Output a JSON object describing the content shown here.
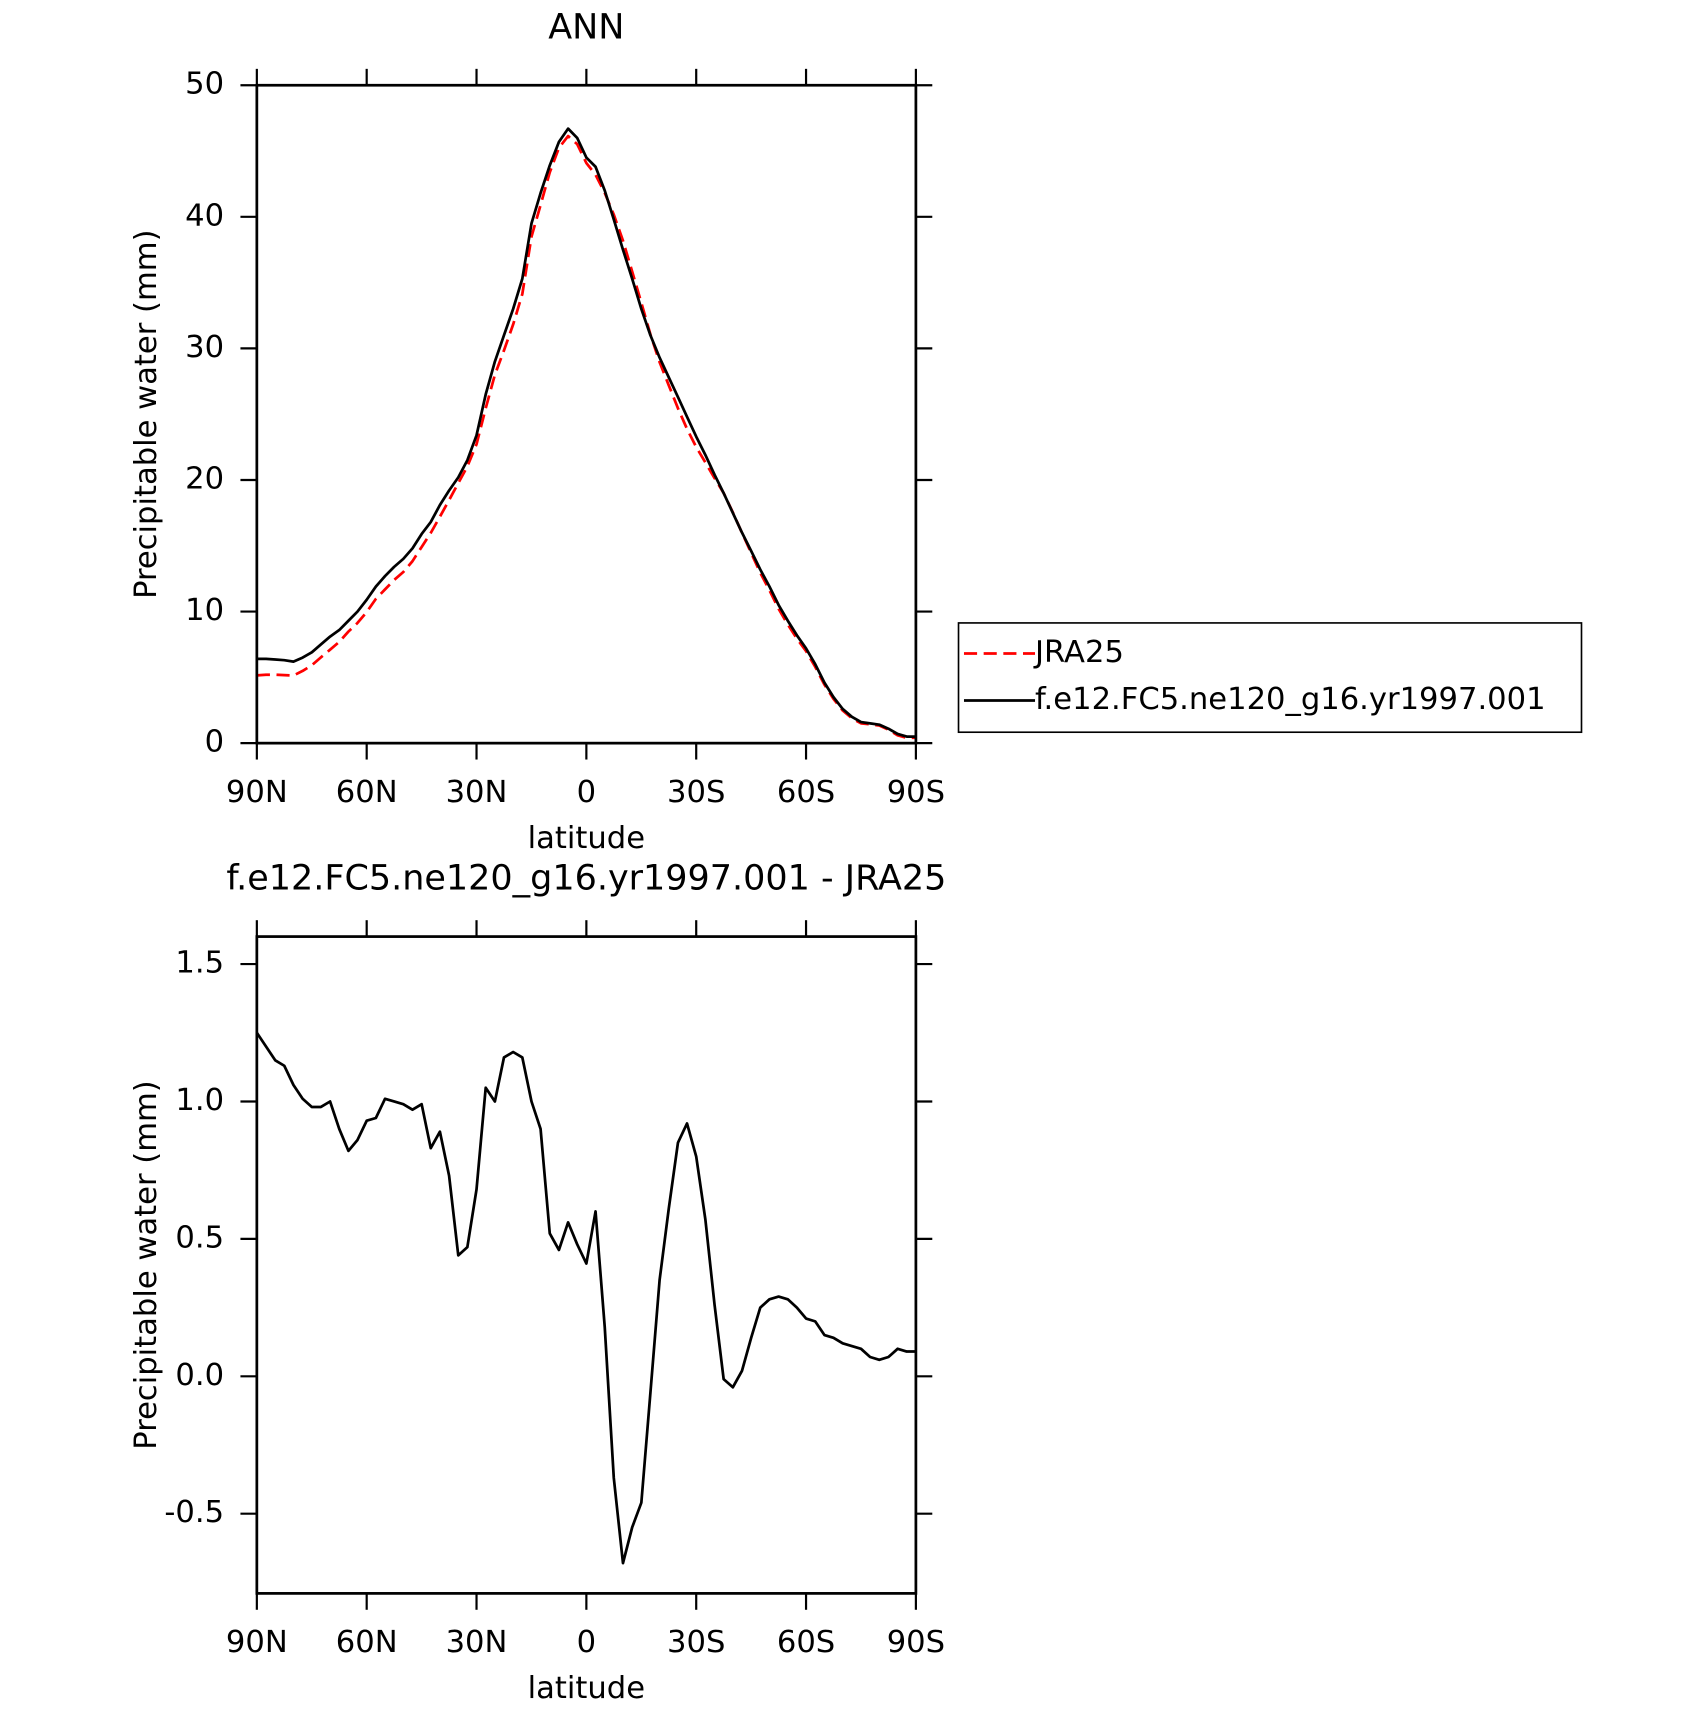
{
  "chart_data": [
    {
      "type": "line",
      "title": "ANN",
      "xlabel": "latitude",
      "ylabel": "Precipitable water (mm)",
      "x": [
        90,
        87.5,
        85,
        82.5,
        80,
        77.5,
        75,
        72.5,
        70,
        67.5,
        65,
        62.5,
        60,
        57.5,
        55,
        52.5,
        50,
        47.5,
        45,
        42.5,
        40,
        37.5,
        35,
        32.5,
        30,
        27.5,
        25,
        22.5,
        20,
        17.5,
        15,
        12.5,
        10,
        7.5,
        5,
        2.5,
        0,
        -2.5,
        -5,
        -7.5,
        -10,
        -12.5,
        -15,
        -17.5,
        -20,
        -22.5,
        -25,
        -27.5,
        -30,
        -32.5,
        -35,
        -37.5,
        -40,
        -42.5,
        -45,
        -47.5,
        -50,
        -52.5,
        -55,
        -57.5,
        -60,
        -62.5,
        -65,
        -67.5,
        -70,
        -72.5,
        -75,
        -77.5,
        -80,
        -82.5,
        -85,
        -87.5,
        -90
      ],
      "series": [
        {
          "name": "JRA25",
          "color": "#ff0000",
          "dash": true,
          "values": [
            5.15,
            5.2,
            5.2,
            5.17,
            5.14,
            5.49,
            5.92,
            6.52,
            7.1,
            7.7,
            8.48,
            9.14,
            9.97,
            10.96,
            11.69,
            12.4,
            13.01,
            13.83,
            14.91,
            15.97,
            17.21,
            18.47,
            19.76,
            21.03,
            22.72,
            25.45,
            28.0,
            29.84,
            31.82,
            34.14,
            38.5,
            40.9,
            43.38,
            45.24,
            46.14,
            45.52,
            44.09,
            43.2,
            41.82,
            40.17,
            38.18,
            35.85,
            33.46,
            31.06,
            28.95,
            27.19,
            25.45,
            23.88,
            22.5,
            21.33,
            20.14,
            19.01,
            17.54,
            15.98,
            14.46,
            12.95,
            11.62,
            10.21,
            9.02,
            7.95,
            6.99,
            5.8,
            4.45,
            3.36,
            2.48,
            1.89,
            1.5,
            1.43,
            1.34,
            1.03,
            0.6,
            0.41,
            0.41
          ]
        },
        {
          "name": "f.e12.FC5.ne120_g16.yr1997.001",
          "color": "#000000",
          "dash": false,
          "values": [
            6.4,
            6.4,
            6.35,
            6.3,
            6.2,
            6.5,
            6.9,
            7.5,
            8.1,
            8.6,
            9.3,
            10.0,
            10.9,
            11.9,
            12.7,
            13.4,
            14.0,
            14.8,
            15.9,
            16.8,
            18.1,
            19.2,
            20.2,
            21.5,
            23.4,
            26.5,
            29.0,
            31.0,
            33.0,
            35.3,
            39.5,
            41.8,
            43.9,
            45.7,
            46.7,
            46.0,
            44.5,
            43.8,
            42.0,
            39.8,
            37.5,
            35.3,
            33.0,
            31.0,
            29.3,
            27.8,
            26.3,
            24.8,
            23.3,
            21.9,
            20.4,
            19.0,
            17.5,
            16.0,
            14.6,
            13.2,
            11.9,
            10.5,
            9.3,
            8.2,
            7.2,
            6.0,
            4.6,
            3.5,
            2.6,
            2.0,
            1.6,
            1.5,
            1.4,
            1.1,
            0.7,
            0.5,
            0.5
          ]
        }
      ],
      "xlim": [
        90,
        -90
      ],
      "xticks": [
        {
          "value": 90,
          "label": "90N"
        },
        {
          "value": 60,
          "label": "60N"
        },
        {
          "value": 30,
          "label": "30N"
        },
        0,
        {
          "value": -30,
          "label": "30S"
        },
        {
          "value": -60,
          "label": "60S"
        },
        {
          "value": -90,
          "label": "90S"
        }
      ],
      "ylim": [
        0,
        50
      ],
      "yticks": [
        0,
        10,
        20,
        30,
        40,
        50
      ],
      "legend": "right"
    },
    {
      "type": "line",
      "title": "f.e12.FC5.ne120_g16.yr1997.001 - JRA25",
      "xlabel": "latitude",
      "ylabel": "Precipitable water (mm)",
      "x": [
        90,
        87.5,
        85,
        82.5,
        80,
        77.5,
        75,
        72.5,
        70,
        67.5,
        65,
        62.5,
        60,
        57.5,
        55,
        52.5,
        50,
        47.5,
        45,
        42.5,
        40,
        37.5,
        35,
        32.5,
        30,
        27.5,
        25,
        22.5,
        20,
        17.5,
        15,
        12.5,
        10,
        7.5,
        5,
        2.5,
        0,
        -2.5,
        -5,
        -7.5,
        -10,
        -12.5,
        -15,
        -17.5,
        -20,
        -22.5,
        -25,
        -27.5,
        -30,
        -32.5,
        -35,
        -37.5,
        -40,
        -42.5,
        -45,
        -47.5,
        -50,
        -52.5,
        -55,
        -57.5,
        -60,
        -62.5,
        -65,
        -67.5,
        -70,
        -72.5,
        -75,
        -77.5,
        -80,
        -82.5,
        -85,
        -87.5,
        -90
      ],
      "series": [
        {
          "color": "#000000",
          "dash": false,
          "values": [
            1.25,
            1.2,
            1.15,
            1.13,
            1.06,
            1.01,
            0.98,
            0.98,
            1.0,
            0.9,
            0.82,
            0.86,
            0.93,
            0.94,
            1.01,
            1.0,
            0.99,
            0.97,
            0.99,
            0.83,
            0.89,
            0.73,
            0.44,
            0.47,
            0.68,
            1.05,
            1.0,
            1.16,
            1.18,
            1.16,
            1.0,
            0.9,
            0.52,
            0.46,
            0.56,
            0.48,
            0.41,
            0.6,
            0.18,
            -0.37,
            -0.68,
            -0.55,
            -0.46,
            -0.06,
            0.35,
            0.61,
            0.85,
            0.92,
            0.8,
            0.57,
            0.26,
            -0.01,
            -0.04,
            0.02,
            0.14,
            0.25,
            0.28,
            0.29,
            0.28,
            0.25,
            0.21,
            0.2,
            0.15,
            0.14,
            0.12,
            0.11,
            0.1,
            0.07,
            0.06,
            0.07,
            0.1,
            0.09,
            0.09
          ]
        }
      ],
      "xlim": [
        90,
        -90
      ],
      "xticks": [
        {
          "value": 90,
          "label": "90N"
        },
        {
          "value": 60,
          "label": "60N"
        },
        {
          "value": 30,
          "label": "30N"
        },
        0,
        {
          "value": -30,
          "label": "30S"
        },
        {
          "value": -60,
          "label": "60S"
        },
        {
          "value": -90,
          "label": "90S"
        }
      ],
      "ylim": [
        -0.79,
        1.6
      ],
      "yticks": [
        -0.5,
        {
          "value": 0,
          "label": "0.0"
        },
        0.5,
        {
          "value": 1,
          "label": "1.0"
        },
        1.5
      ]
    }
  ]
}
